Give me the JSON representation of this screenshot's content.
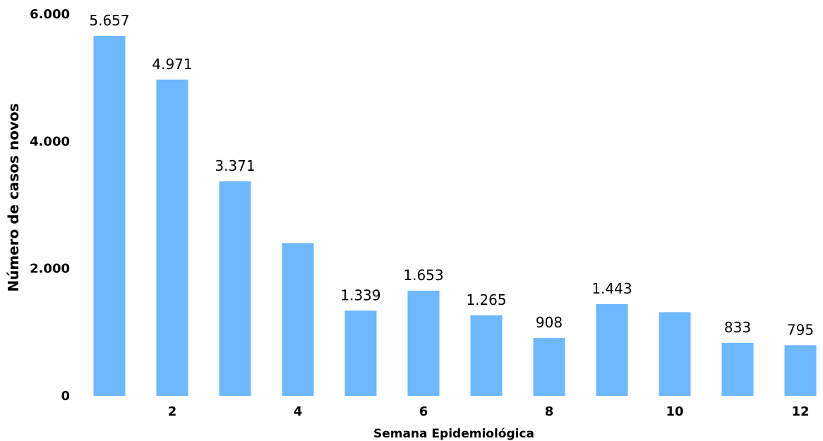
{
  "chart_data": {
    "type": "bar",
    "x": [
      1,
      2,
      3,
      4,
      5,
      6,
      7,
      8,
      9,
      10,
      11,
      12
    ],
    "values": [
      5657,
      4971,
      3371,
      2400,
      1339,
      1653,
      1265,
      908,
      1443,
      1315,
      833,
      795
    ],
    "data_labels": [
      "5.657",
      "4.971",
      "3.371",
      "",
      "1.339",
      "1.653",
      "1.265",
      "908",
      "1.443",
      "",
      "833",
      "795"
    ],
    "x_tick_labels": [
      "",
      "2",
      "",
      "4",
      "",
      "6",
      "",
      "8",
      "",
      "10",
      "",
      "12"
    ],
    "y_ticks": [
      0,
      2000,
      4000,
      6000
    ],
    "y_tick_labels": [
      "0",
      "2.000",
      "4.000",
      "6.000"
    ],
    "ylim": [
      0,
      6000
    ],
    "xlabel": "Semana Epidemiológica",
    "ylabel": "Número de casos novos",
    "grid": false,
    "legend": "none",
    "bar_color": "#6db8ff"
  }
}
